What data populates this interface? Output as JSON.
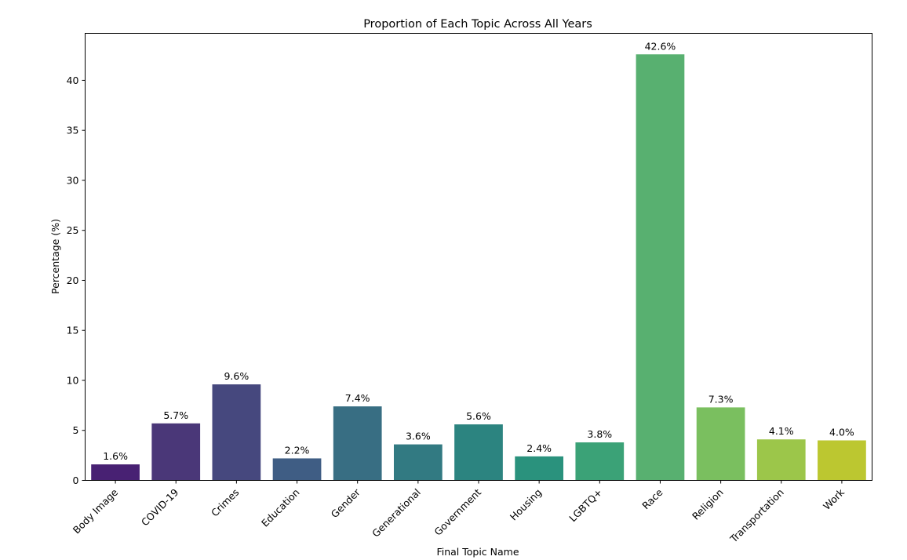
{
  "chart_data": {
    "type": "bar",
    "title": "Proportion of Each Topic Across All Years",
    "xlabel": "Final Topic Name",
    "ylabel": "Percentage (%)",
    "categories": [
      "Body Image",
      "COVID-19",
      "Crimes",
      "Education",
      "Gender",
      "Generational",
      "Government",
      "Housing",
      "LGBTQ+",
      "Race",
      "Religion",
      "Transportation",
      "Work"
    ],
    "values": [
      1.6,
      5.7,
      9.6,
      2.2,
      7.4,
      3.6,
      5.6,
      2.4,
      3.8,
      42.6,
      7.3,
      4.1,
      4.0
    ],
    "data_labels": [
      "1.6%",
      "5.7%",
      "9.6%",
      "2.2%",
      "7.4%",
      "3.6%",
      "5.6%",
      "2.4%",
      "3.8%",
      "42.6%",
      "7.3%",
      "4.1%",
      "4.0%"
    ],
    "colors": [
      "#482173",
      "#4a3778",
      "#46487e",
      "#3f5d84",
      "#386e83",
      "#327a82",
      "#2c8480",
      "#2a927d",
      "#3ba277",
      "#58b070",
      "#7abf5f",
      "#9cc64a",
      "#bcc730"
    ],
    "yticks": [
      0,
      5,
      10,
      15,
      20,
      25,
      30,
      35,
      40
    ],
    "ylim": [
      0,
      44.7
    ],
    "grid": false,
    "legend": "none"
  }
}
